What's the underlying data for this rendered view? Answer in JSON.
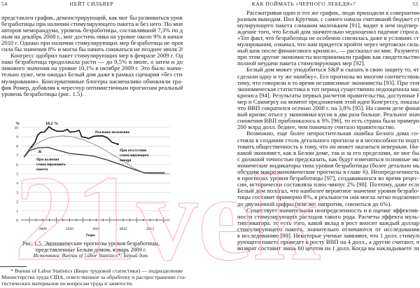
{
  "header": {
    "left_page_number": "54",
    "left_running_title": "НЕЙТ СИЛЬВЕР",
    "right_running_title": "КАК ПОЙМАТЬ «ЧЕРНОГО ЛЕБЕДЯ»?",
    "right_page_number": "55"
  },
  "left_text": [
    {
      "t": "представлен график, демонстрирующий, как мог бы развиваться уровень"
    },
    {
      "t": "безработицы при наличии стимулирующего пакета и без него. По мнению"
    },
    {
      "t": "авторов меморандума, уровень безработицы, составлявший 7,3% по дан-"
    },
    {
      "t": "ным на декабрь 2008 г., мог достичь пика на уровне около 9% в начале"
    },
    {
      "t": "2010 г. Однако при наличии стимулирующих мер безработица не превы-"
    },
    {
      "t": "сила бы значения 8% и могла бы начать снижаться не позднее июля 2009 г.",
      "last": true
    },
    {
      "t": "Конгресс одобрил пакет стимулирующих мер в феврале 2009 г. Од-",
      "ind": true
    },
    {
      "t": "нако безработица продолжала расти — до 9,5% в июле, а затем и до"
    },
    {
      "t": "пикового значения на уровне 10,1% в октябре 2009 г. Это было значи-"
    },
    {
      "t": "тельно хуже, чем ожидал Белый дом даже в рамках сценария «без сти-"
    },
    {
      "t": "мулирования». Консервативные блогеры насмешливо обновляли гра-"
    },
    {
      "t": "фик Ромер, добавляя к чересчур оптимистичным прогнозам реальный"
    },
    {
      "t": "уровень безработицы (рис. 1.5).",
      "last": true
    }
  ],
  "chart_data": {
    "type": "line",
    "title": "",
    "xlabel": "Годы",
    "ylabel": "%",
    "ylim": [
      0,
      10
    ],
    "xlim": [
      2008.75,
      2014.3
    ],
    "yticks": [
      "0",
      "1",
      "2",
      "3",
      "4",
      "5",
      "6",
      "7",
      "8",
      "9",
      "10"
    ],
    "xtick_labels": [
      "2009",
      "2010",
      "2011",
      "2012",
      "2013"
    ],
    "grid": true,
    "annotations": {
      "peak": "10.1 %"
    },
    "series": [
      {
        "name": "Реальное положение",
        "color": "#111111",
        "x": [
          2008.8,
          2009.03,
          2009.21,
          2009.31,
          2009.43,
          2009.56,
          2009.73,
          2009.86,
          2010.03,
          2010.25,
          2010.42,
          2010.51,
          2010.69,
          2010.86,
          2010.95,
          2011.12,
          2011.21,
          2011.39,
          2011.56,
          2011.73,
          2011.9,
          2012.08,
          2012.3
        ],
        "y": [
          6.8,
          7.75,
          8.4,
          9.2,
          9.5,
          9.5,
          10.1,
          9.8,
          9.6,
          9.6,
          9.8,
          9.5,
          9.55,
          9.7,
          9.0,
          8.9,
          8.8,
          9.05,
          9.1,
          9.1,
          8.9,
          8.4,
          8.2
        ]
      },
      {
        "name": "При отсутствии стимулирующего пакета",
        "label_lines": [
          "При отсутствии",
          "стимулирующего",
          "пакета"
        ],
        "color": "#9a9a9a",
        "x": [
          2008.8,
          2009.0,
          2009.3,
          2009.6,
          2009.9,
          2010.25,
          2010.6,
          2011.0,
          2011.4,
          2011.8,
          2012.2,
          2012.6,
          2012.9,
          2013.3,
          2013.7,
          2014.25
        ],
        "y": [
          6.8,
          7.6,
          8.3,
          8.75,
          9.0,
          9.1,
          9.0,
          8.7,
          8.2,
          7.6,
          6.9,
          6.2,
          5.6,
          5.05,
          5.0,
          5.0
        ]
      },
      {
        "name": "При наличии стимулирующего пакета",
        "label_lines": [
          "При наличии",
          "стимулирующего",
          "пакета"
        ],
        "color": "#333333",
        "x": [
          2008.8,
          2009.0,
          2009.3,
          2009.7,
          2010.0,
          2010.5,
          2011.0,
          2011.4,
          2011.9,
          2012.4,
          2012.87,
          2013.3,
          2013.7,
          2014.05
        ],
        "y": [
          6.8,
          7.5,
          7.8,
          7.85,
          7.6,
          7.2,
          7.05,
          6.9,
          6.5,
          6.0,
          5.5,
          5.1,
          5.1,
          5.1
        ]
      }
    ]
  },
  "caption": {
    "line1": "Рис. 1.5. Экономические прогнозы уровня безработицы,",
    "line2": "представленные Белым домом, январь 2009 г.",
    "source": "Источники: Bureau of Labor Statistics*; Белый дом."
  },
  "footnote": [
    {
      "t": "* Bureau of Labor Statistics (Бюро трудовой статистики) — подразделение"
    },
    {
      "t": "Министерства труда США, ответственное за обработку и распространение ста-"
    },
    {
      "t": "тистических материалов по вопросам труда и занятости.",
      "last": true
    }
  ],
  "right_text": [
    {
      "t": "Рассматривая один и тот же график, люди приходили к совершенно",
      "ind": true
    },
    {
      "t": "разным выводам. Пол Кругман, с самого начала считавший бюджет сти-"
    },
    {
      "t": "мулирующего пакета слишком маленьким [91], видит в нем подтвер-"
    },
    {
      "t": "ждение того, что Белый дом значительно недооценил падение спроса."
    },
    {
      "t": "«Тот факт, что безработица не особенно снизилась даже в условиях сти-"
    },
    {
      "t": "мулирования, означал, что нам придется пройти через чертовски силь-"
    },
    {
      "t": "ный шок после финансового кризиса», — рассказал он мне. Разумеется,"
    },
    {
      "t": "при этом другие экономисты воспринимали график как свидетельство"
    },
    {
      "t": "полной неудачи пакета стимулирующих мер [92].",
      "last": true
    },
    {
      "t": "Белый дом может уподобиться S&P и сказать в свою защиту то, что «все",
      "ind": true
    },
    {
      "t": "сделали одну и ту же ошибку». Его прогнозы во многом соответствовали"
    },
    {
      "t": "тому, что говорили в то время независимые экономисты [93]. При этом"
    },
    {
      "t": "экономическая статистика в тот период существенно недооценила масштаб"
    },
    {
      "t": "кризиса [94]. Результаты первых расчетов правительства, доступные Ро-"
    },
    {
      "t": "мер и Саммерсу на момент предложения этой идеи Конгрессу, показывали,"
    },
    {
      "t": "что ВВП сократился осенью 2008 г. на 3,8% [95]. На самом деле финансо-"
    },
    {
      "t": "вый кризис отъел у экономики кусок в два раза больше. Реальное значение"
    },
    {
      "t": "снижения ВВП приближалось к 9% [96], то есть страна была примерно на"
    },
    {
      "t": "200 млрд долл. беднее, чем поначалу считало правительство.",
      "last": true
    },
    {
      "t": "Возможно, еще более непростительная ошибка Белого дома со-",
      "ind": true
    },
    {
      "t": "стояла в создании столь детального прогноза и в неспособности подго-"
    },
    {
      "t": "товить общественность к тому, что он может оказаться неверным. Ни-"
    },
    {
      "t": "какой экономист, как в Белом доме, так и за его пределами, не мог бы"
    },
    {
      "t": "с должной точностью предсказать, как будут изменяться основные эко-"
    },
    {
      "t": "номические индикаторы типа уровня безработицы (более детально мы"
    },
    {
      "t": "обсудим макроэкономические прогнозы в главе 6). Неопределенность"
    },
    {
      "t": "в прогнозах уровня безработицы [97], создававшихся во время рецес-"
    },
    {
      "t": "сии, исторически составляла плюс-минус 2% [98]. Поэтому, даже если"
    },
    {
      "t": "Белый дом полагал, что наиболее вероятное значение уровня безрабо-"
    },
    {
      "t": "тицы составит примерно 8%, в реальности она могла легко подскочить"
    },
    {
      "t": "до двузначной цифры (или же, напротив, снизиться до 6%).",
      "last": true
    },
    {
      "t": "Существует значительная неопределенность и в оценке эффектив-",
      "ind": true
    },
    {
      "t": "ности стимулирующих расходов такого рода. Расчеты эффекта муль-"
    },
    {
      "t": "типликатора, то есть того, какой вклад в рост вносит каждый доллар"
    },
    {
      "t": "стимулирующего пакета, значительно отличаются от исследования"
    },
    {
      "t": "к исследованию [99]. Некоторые ученые заявляют, что 1 долл. стимули-"
    },
    {
      "t": "рующего пакета приведет к росту ВВП на 4 долл., а другие считают, что"
    },
    {
      "t": "возврат составит лишь 60 центов на 1 долл. Когда вы накладываете зна-"
    }
  ],
  "watermark": {
    "text": "21vek",
    "color": "#f4a7c0"
  }
}
